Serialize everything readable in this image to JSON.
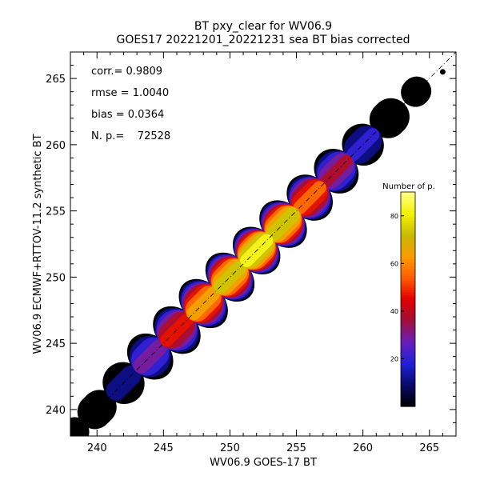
{
  "chart_data": {
    "type": "heatmap",
    "title": "BT pxy_clear for WV06.9",
    "subtitle": "GOES17 20221201_20221231 sea BT bias corrected",
    "xlabel": "WV06.9 GOES-17 BT",
    "ylabel": "WV06.9 ECMWF+RTTOV-11.2 synthetic BT",
    "xlim": [
      238,
      267
    ],
    "ylim": [
      238,
      267
    ],
    "xticks": [
      240,
      245,
      250,
      255,
      260,
      265
    ],
    "yticks": [
      240,
      245,
      250,
      255,
      260,
      265
    ],
    "stats": [
      {
        "label": "corr.= 0.9809"
      },
      {
        "label": "rmse = 1.0040"
      },
      {
        "label": "bias = 0.0364"
      },
      {
        "label": "N. p.=    72528"
      }
    ],
    "one_to_one_line": {
      "from": [
        238,
        238
      ],
      "to": [
        267,
        267
      ],
      "style": "dash-dot"
    },
    "density": {
      "along_diagonal": [
        {
          "x": 238,
          "spread": 1.1,
          "peak": 3
        },
        {
          "x": 240,
          "spread": 1.3,
          "peak": 6
        },
        {
          "x": 242,
          "spread": 1.6,
          "peak": 14
        },
        {
          "x": 244,
          "spread": 1.9,
          "peak": 32
        },
        {
          "x": 246,
          "spread": 2.0,
          "peak": 50
        },
        {
          "x": 248,
          "spread": 2.1,
          "peak": 68
        },
        {
          "x": 250,
          "spread": 2.1,
          "peak": 78
        },
        {
          "x": 252,
          "spread": 2.0,
          "peak": 88
        },
        {
          "x": 254,
          "spread": 2.0,
          "peak": 80
        },
        {
          "x": 256,
          "spread": 1.9,
          "peak": 60
        },
        {
          "x": 258,
          "spread": 1.8,
          "peak": 38
        },
        {
          "x": 260,
          "spread": 1.6,
          "peak": 22
        },
        {
          "x": 262,
          "spread": 1.4,
          "peak": 10
        },
        {
          "x": 264,
          "spread": 1.1,
          "peak": 4
        },
        {
          "x": 265.5,
          "spread": 0.5,
          "peak": 1
        }
      ],
      "outlier": {
        "x": 266,
        "y": 265.5
      }
    },
    "colorbar": {
      "title": "Number of p.",
      "min": 0,
      "max": 90,
      "ticks": [
        20,
        40,
        60,
        80
      ],
      "colors": [
        "#000000",
        "#0a0a6e",
        "#2020d8",
        "#6a1fb8",
        "#a0103a",
        "#e00000",
        "#ff5a00",
        "#ff9a00",
        "#c8b800",
        "#f0f000",
        "#ffff80"
      ]
    }
  }
}
